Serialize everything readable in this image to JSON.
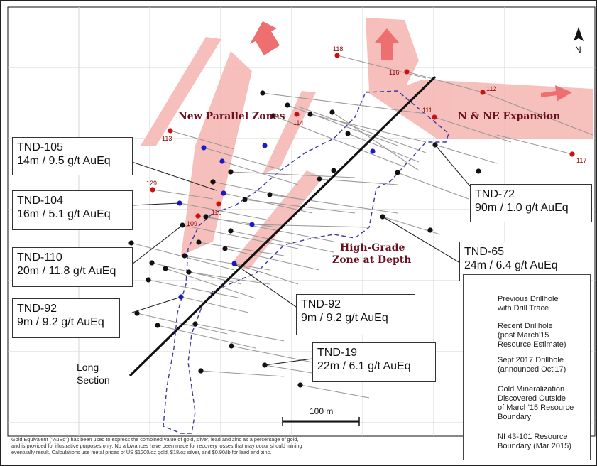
{
  "zones": {
    "parallel": "New Parallel Zones",
    "expansion": "N & NE Expansion",
    "high_grade_line1": "High-Grade",
    "high_grade_line2": "Zone at Depth"
  },
  "long_section": {
    "line1": "Long",
    "line2": "Section"
  },
  "scale_bar": "100 m",
  "north": "N",
  "new_hole_labels": [
    "118",
    "116",
    "112",
    "111",
    "114",
    "113",
    "117",
    "129",
    "110",
    "109"
  ],
  "callouts": [
    {
      "title": "TND-105",
      "value": "14m / 9.5 g/t AuEq"
    },
    {
      "title": "TND-104",
      "value": "16m / 5.1 g/t AuEq"
    },
    {
      "title": "TND-110",
      "value": "20m / 11.8 g/t AuEq"
    },
    {
      "title": "TND-92",
      "value": "9m / 9.2 g/t AuEq"
    },
    {
      "title": "TND-72",
      "value": "90m / 1.0 g/t AuEq"
    },
    {
      "title": "TND-65",
      "value": "24m / 6.4 g/t AuEq"
    },
    {
      "title": "TND-92",
      "value": "9m / 9.2 g/t AuEq"
    },
    {
      "title": "TND-19",
      "value": "22m / 6.1 g/t AuEq"
    }
  ],
  "legend": {
    "previous": [
      "Previous Drillhole",
      "with Drill Trace"
    ],
    "recent": [
      "Recent Drillhole",
      "(post March'15",
      "Resource Estimate)"
    ],
    "sept2017": [
      "Sept 2017 Drillhole",
      "(announced Oct'17)"
    ],
    "mineralization": [
      "Gold Mineralization",
      "Discovered Outside",
      "of March'15 Resource",
      "Boundary"
    ],
    "boundary": [
      "NI 43-101 Resource",
      "Boundary (Mar 2015)"
    ]
  },
  "colors": {
    "previous": "#111111",
    "recent": "#1a1acc",
    "sept2017": "#cc1010",
    "mineralization": "#f5b5b0",
    "arrow": "#ee6f6f",
    "boundary": "#3a3aa0",
    "zone_text": "#6b1020"
  },
  "footer": {
    "line1": "Gold Equivalent (\"AuEq\") has been used to express the combined value of gold, silver, lead and zinc as a percentage of gold,",
    "line2": "and is provided for illustrative purposes only. No allowances have been made for recovery losses that may occur should mining",
    "line3": "eventually result. Calculations use metal prices of US $1200/oz gold, $18/oz silver, and $0.90/lb for lead and zinc."
  }
}
